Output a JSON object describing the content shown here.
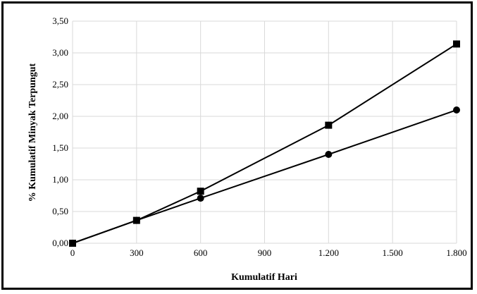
{
  "chart_data": {
    "type": "line",
    "title": "",
    "xlabel": "Kumulatif Hari",
    "ylabel": "% Kumulatif  Minyak Terpungut",
    "xlim": [
      0,
      1800
    ],
    "ylim": [
      0,
      3.5
    ],
    "grid": true,
    "x_ticks": [
      0,
      300,
      600,
      900,
      1200,
      1500,
      1800
    ],
    "x_tick_labels": [
      "0",
      "300",
      "600",
      "900",
      "1.200",
      "1.500",
      "1.800"
    ],
    "y_ticks": [
      0,
      0.5,
      1.0,
      1.5,
      2.0,
      2.5,
      3.0,
      3.5
    ],
    "y_tick_labels": [
      "0,00",
      "0,50",
      "1,00",
      "1,50",
      "2,00",
      "2,50",
      "3,00",
      "3,50"
    ],
    "series": [
      {
        "marker": "square",
        "color": "#000000",
        "x": [
          0,
          300,
          600,
          1200,
          1800
        ],
        "y": [
          0.0,
          0.36,
          0.82,
          1.86,
          3.14
        ]
      },
      {
        "marker": "circle",
        "color": "#000000",
        "x": [
          0,
          300,
          600,
          1200,
          1800
        ],
        "y": [
          0.0,
          0.36,
          0.71,
          1.4,
          2.1
        ]
      }
    ]
  },
  "colors": {
    "grid": "#d9d9d9",
    "line": "#000000",
    "border": "#000000"
  }
}
